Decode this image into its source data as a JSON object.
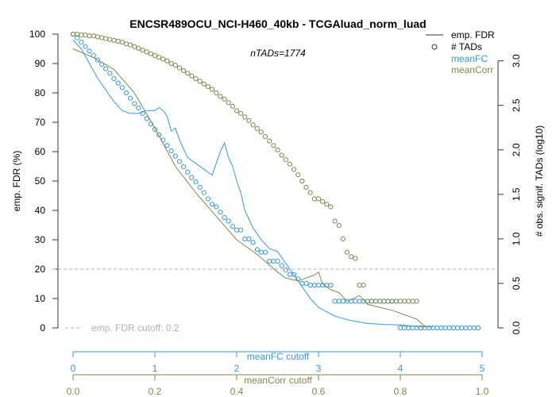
{
  "chart_data": {
    "type": "line",
    "title": "ENCSR489OCU_NCI-H460_40kb - TCGAluad_norm_luad",
    "annotation": "nTADs=1774",
    "ylabel_left": "emp. FDR (%)",
    "ylabel_right": "# obs. signif. TADs (log10)",
    "x_axes": [
      {
        "label": "meanFC cutoff",
        "range": [
          0,
          5
        ],
        "ticks": [
          "0",
          "1",
          "2",
          "3",
          "4",
          "5"
        ],
        "color": "#3399dd"
      },
      {
        "label": "meanCorr cutoff",
        "range": [
          0,
          1
        ],
        "ticks": [
          "0.0",
          "0.2",
          "0.4",
          "0.6",
          "0.8",
          "1.0"
        ],
        "color": "#7a8b4a"
      }
    ],
    "y_left": {
      "range": [
        0,
        100
      ],
      "ticks": [
        "0",
        "10",
        "20",
        "30",
        "40",
        "50",
        "60",
        "70",
        "80",
        "90",
        "100"
      ]
    },
    "y_right": {
      "range": [
        0,
        3.3
      ],
      "ticks": [
        "0.0",
        "0.5",
        "1.0",
        "1.5",
        "2.0",
        "2.5",
        "3.0"
      ]
    },
    "cutoff": {
      "label": "emp. FDR cutoff: 0.2",
      "value": 20
    },
    "legend": {
      "placement": "top-right",
      "items": [
        {
          "label": "emp. FDR",
          "symbol": "line",
          "color": "#333333"
        },
        {
          "label": "# TADs",
          "symbol": "circle",
          "color": "#333333"
        },
        {
          "label": "meanFC",
          "symbol": "text",
          "color": "#3399dd"
        },
        {
          "label": "meanCorr",
          "symbol": "text",
          "color": "#7a8b4a"
        }
      ]
    },
    "series": [
      {
        "name": "meanFC",
        "color": "#3399dd",
        "fdr": {
          "x": [
            0,
            0.1,
            0.2,
            0.3,
            0.4,
            0.5,
            0.6,
            0.7,
            0.8,
            0.9,
            1.0,
            1.05,
            1.1,
            1.15,
            1.2,
            1.25,
            1.3,
            1.4,
            1.5,
            1.6,
            1.7,
            1.8,
            1.85,
            1.9,
            1.95,
            2.0,
            2.05,
            2.1,
            2.2,
            2.3,
            2.4,
            2.5,
            2.6,
            2.7,
            2.8,
            2.9,
            3.0,
            3.2,
            3.4,
            3.6,
            3.8,
            4.0,
            4.2,
            4.4
          ],
          "y": [
            98,
            95,
            90,
            85,
            81,
            77,
            74,
            73,
            73,
            74,
            74,
            75,
            74,
            72,
            67,
            68,
            64,
            58,
            56,
            54,
            52,
            60,
            63,
            58,
            55,
            50,
            46,
            40,
            34,
            30,
            27,
            26,
            22,
            18,
            14,
            10,
            7,
            4,
            2.5,
            1.5,
            1.2,
            1,
            0.5,
            0.3
          ]
        },
        "tads": {
          "x": [
            0,
            0.05,
            0.1,
            0.15,
            0.2,
            0.25,
            0.3,
            0.35,
            0.4,
            0.45,
            0.5,
            0.55,
            0.6,
            0.65,
            0.7,
            0.75,
            0.8,
            0.85,
            0.9,
            0.95,
            1.0,
            1.05,
            1.1,
            1.15,
            1.2,
            1.25,
            1.3,
            1.35,
            1.4,
            1.45,
            1.5,
            1.55,
            1.6,
            1.65,
            1.7,
            1.75,
            1.8,
            1.85,
            1.9,
            1.95,
            2.0,
            2.05,
            2.1,
            2.15,
            2.2,
            2.25,
            2.3,
            2.35,
            2.4,
            2.45,
            2.5,
            2.55,
            2.6,
            2.65,
            2.7,
            2.75,
            2.8,
            2.85,
            2.9,
            2.95,
            3.0,
            3.05,
            3.1,
            3.15,
            3.2,
            3.25,
            3.3,
            3.35,
            3.4,
            3.45,
            3.5,
            3.55,
            3.6,
            3.65,
            3.7,
            3.75,
            3.8,
            3.85,
            3.9,
            3.95,
            4.0,
            4.05,
            4.1,
            4.15,
            4.2,
            4.25,
            4.3,
            4.35,
            4.4,
            4.45,
            4.5,
            4.55,
            4.6,
            4.65,
            4.7,
            4.75,
            4.8,
            4.85,
            4.9,
            4.95
          ],
          "y": [
            3.3,
            3.26,
            3.21,
            3.16,
            3.11,
            3.06,
            3.01,
            2.96,
            2.91,
            2.86,
            2.8,
            2.75,
            2.7,
            2.64,
            2.58,
            2.52,
            2.47,
            2.41,
            2.35,
            2.29,
            2.23,
            2.17,
            2.11,
            2.05,
            1.99,
            1.93,
            1.87,
            1.81,
            1.75,
            1.69,
            1.64,
            1.58,
            1.52,
            1.45,
            1.39,
            1.36,
            1.3,
            1.24,
            1.2,
            1.14,
            1.1,
            1.1,
            1.0,
            1.0,
            0.96,
            0.88,
            0.85,
            0.85,
            0.75,
            0.75,
            0.75,
            0.7,
            0.65,
            0.6,
            0.6,
            0.55,
            0.5,
            0.5,
            0.48,
            0.48,
            0.48,
            0.48,
            0.48,
            0.48,
            0.3,
            0.3,
            0.3,
            0.3,
            0.3,
            0.3,
            0.3,
            0.3,
            0.3,
            0.3,
            0.3,
            0.3,
            0.3,
            0.3,
            0.3,
            0.3,
            0.0,
            0.0,
            0.0,
            0.0,
            0.0,
            0.0,
            0.0,
            0.0,
            0.0,
            0.0,
            0.0,
            0.0,
            0.0,
            0.0,
            0.0,
            0.0,
            0.0,
            0.0,
            0.0,
            0.0
          ]
        }
      },
      {
        "name": "meanCorr",
        "color": "#7a8b4a",
        "fdr": {
          "x": [
            0,
            0.05,
            0.1,
            0.15,
            0.2,
            0.25,
            0.3,
            0.35,
            0.4,
            0.45,
            0.5,
            0.52,
            0.55,
            0.57,
            0.59,
            0.6,
            0.61,
            0.62,
            0.63,
            0.65,
            0.67,
            0.7,
            0.72,
            0.75,
            0.78,
            0.8,
            0.82,
            0.84,
            0.86
          ],
          "y": [
            95,
            92,
            88,
            80,
            68,
            55,
            46,
            38,
            30,
            25,
            19,
            17,
            16,
            17,
            18,
            19,
            15,
            14,
            13,
            12,
            9,
            11,
            8,
            7,
            6,
            5,
            4,
            3,
            0.5
          ]
        },
        "tads": {
          "x": [
            0,
            0.01,
            0.02,
            0.03,
            0.04,
            0.05,
            0.06,
            0.07,
            0.08,
            0.09,
            0.1,
            0.11,
            0.12,
            0.13,
            0.14,
            0.15,
            0.16,
            0.17,
            0.18,
            0.19,
            0.2,
            0.21,
            0.22,
            0.23,
            0.24,
            0.25,
            0.26,
            0.27,
            0.28,
            0.29,
            0.3,
            0.31,
            0.32,
            0.33,
            0.34,
            0.35,
            0.36,
            0.37,
            0.38,
            0.39,
            0.4,
            0.41,
            0.42,
            0.43,
            0.44,
            0.45,
            0.46,
            0.47,
            0.48,
            0.49,
            0.5,
            0.51,
            0.52,
            0.53,
            0.54,
            0.55,
            0.56,
            0.57,
            0.58,
            0.59,
            0.6,
            0.61,
            0.62,
            0.63,
            0.64,
            0.65,
            0.66,
            0.67,
            0.68,
            0.69,
            0.7,
            0.71,
            0.72,
            0.73,
            0.74,
            0.75,
            0.76,
            0.77,
            0.78,
            0.79,
            0.8,
            0.81,
            0.82,
            0.83,
            0.84,
            0.85
          ],
          "y": [
            3.3,
            3.3,
            3.29,
            3.29,
            3.28,
            3.28,
            3.27,
            3.26,
            3.25,
            3.24,
            3.23,
            3.22,
            3.21,
            3.19,
            3.18,
            3.16,
            3.14,
            3.12,
            3.1,
            3.08,
            3.06,
            3.04,
            3.02,
            3.0,
            2.97,
            2.95,
            2.92,
            2.89,
            2.86,
            2.83,
            2.8,
            2.77,
            2.74,
            2.71,
            2.68,
            2.64,
            2.6,
            2.57,
            2.53,
            2.49,
            2.44,
            2.41,
            2.37,
            2.33,
            2.28,
            2.24,
            2.2,
            2.15,
            2.1,
            2.05,
            2.0,
            1.94,
            1.89,
            1.84,
            1.78,
            1.72,
            1.65,
            1.58,
            1.52,
            1.45,
            1.45,
            1.42,
            1.39,
            1.36,
            1.2,
            1.15,
            1.0,
            0.85,
            0.8,
            0.78,
            0.48,
            0.48,
            0.3,
            0.3,
            0.3,
            0.3,
            0.3,
            0.3,
            0.3,
            0.3,
            0.3,
            0.3,
            0.3,
            0.3,
            0.3,
            0.0
          ]
        }
      }
    ]
  }
}
